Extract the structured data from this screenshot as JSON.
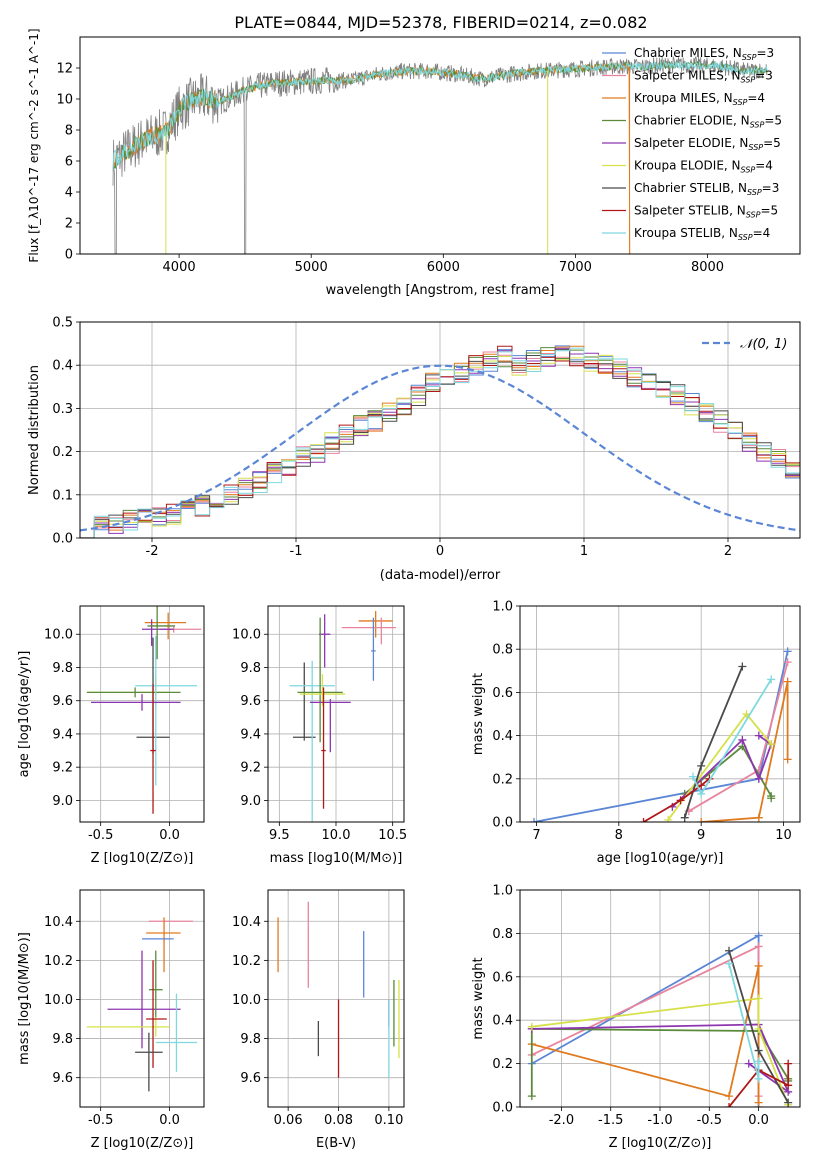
{
  "figure": {
    "title": "PLATE=0844, MJD=52378, FIBERID=0214, z=0.082"
  },
  "colors": {
    "chabrier_miles": "#5b86d6",
    "salpeter_miles": "#e8849e",
    "kroupa_miles": "#e07a1f",
    "chabrier_elodie": "#5a8a3a",
    "salpeter_elodie": "#8e36b0",
    "kroupa_elodie": "#d6e04a",
    "chabrier_stelib": "#4a4a4a",
    "salpeter_stelib": "#b01818",
    "kroupa_stelib": "#7fd8e0",
    "gaussian": "#5b86d6"
  },
  "labels": {
    "spec_ylabel": "Flux [f_λ10^-17 erg cm^-2 s^-1 A^-1]",
    "spec_xlabel": "wavelength [Angstrom, rest frame]",
    "hist_ylabel": "Normed distribution",
    "hist_xlabel": "(data-model)/error",
    "hist_legend": "𝒩(0, 1)",
    "age_ylabel": "age  [log10(age/yr)]",
    "z_xlabel": "Z [log10(Z/Z⊙)]",
    "mass_xlabel": "mass [log10(M/M⊙)]",
    "mass_ylabel": "mass [log10(M/M⊙)]",
    "weight_ylabel": "mass weight",
    "age_xlabel": "age  [log10(age/yr)]",
    "ebv_xlabel": "E(B-V)"
  },
  "legend_entries": [
    {
      "key": "chabrier_miles",
      "text": "Chabrier MILES, N",
      "sub": "SSP",
      "val": "=3"
    },
    {
      "key": "salpeter_miles",
      "text": "Salpeter MILES, N",
      "sub": "SSP",
      "val": "=3"
    },
    {
      "key": "kroupa_miles",
      "text": "Kroupa MILES, N",
      "sub": "SSP",
      "val": "=4"
    },
    {
      "key": "chabrier_elodie",
      "text": "Chabrier ELODIE, N",
      "sub": "SSP",
      "val": "=5"
    },
    {
      "key": "salpeter_elodie",
      "text": "Salpeter ELODIE, N",
      "sub": "SSP",
      "val": "=5"
    },
    {
      "key": "kroupa_elodie",
      "text": "Kroupa ELODIE, N",
      "sub": "SSP",
      "val": "=4"
    },
    {
      "key": "chabrier_stelib",
      "text": "Chabrier STELIB, N",
      "sub": "SSP",
      "val": "=3"
    },
    {
      "key": "salpeter_stelib",
      "text": "Salpeter STELIB, N",
      "sub": "SSP",
      "val": "=5"
    },
    {
      "key": "kroupa_stelib",
      "text": "Kroupa STELIB, N",
      "sub": "SSP",
      "val": "=4"
    }
  ],
  "chart_data": [
    {
      "id": "spectrum",
      "type": "line",
      "xlim": [
        3250,
        8700
      ],
      "ylim": [
        0,
        14
      ],
      "xticks": [
        4000,
        5000,
        6000,
        7000,
        8000
      ],
      "yticks": [
        0,
        2,
        4,
        6,
        8,
        10,
        12
      ],
      "continuum": {
        "x": [
          3500,
          3600,
          3700,
          3800,
          3900,
          4000,
          4100,
          4200,
          4300,
          4500,
          4700,
          4900,
          5100,
          5300,
          5500,
          5700,
          5900,
          6100,
          6300,
          6500,
          6700,
          6900,
          7100,
          7300,
          7500,
          7700,
          7900,
          8100,
          8300,
          8450
        ],
        "y": [
          6.0,
          6.6,
          7.2,
          7.6,
          7.9,
          9.3,
          9.9,
          10.1,
          9.8,
          10.6,
          11.0,
          11.1,
          11.2,
          11.2,
          11.6,
          11.8,
          11.8,
          11.6,
          11.3,
          11.6,
          11.8,
          11.9,
          12.0,
          12.1,
          12.1,
          12.2,
          12.2,
          12.1,
          11.8,
          11.9
        ]
      },
      "grid": false
    },
    {
      "id": "residual_hist",
      "type": "bar",
      "xlim": [
        -2.5,
        2.5
      ],
      "ylim": [
        0,
        0.5
      ],
      "xticks": [
        -2,
        -1,
        0,
        1,
        2
      ],
      "yticks": [
        0.0,
        0.1,
        0.2,
        0.3,
        0.4,
        0.5
      ],
      "bin_width": 0.1,
      "bin_start": -2.5,
      "base_counts": [
        0.025,
        0.03,
        0.035,
        0.04,
        0.045,
        0.05,
        0.055,
        0.065,
        0.075,
        0.085,
        0.1,
        0.115,
        0.13,
        0.15,
        0.17,
        0.19,
        0.2,
        0.22,
        0.24,
        0.26,
        0.27,
        0.29,
        0.31,
        0.33,
        0.36,
        0.37,
        0.38,
        0.4,
        0.41,
        0.42,
        0.4,
        0.41,
        0.42,
        0.43,
        0.42,
        0.41,
        0.4,
        0.39,
        0.37,
        0.36,
        0.34,
        0.33,
        0.31,
        0.29,
        0.27,
        0.25,
        0.22,
        0.2,
        0.18,
        0.16,
        0.14,
        0.12,
        0.11,
        0.09,
        0.08,
        0.07,
        0.06,
        0.05,
        0.04,
        0.035,
        0.03,
        0.025,
        0.02,
        0.02,
        0.015,
        0.01,
        0.01,
        0.01,
        0.01,
        0.01
      ],
      "gaussian": {
        "mean": 0,
        "sigma": 1,
        "name": "𝒩(0, 1)"
      },
      "grid": true
    },
    {
      "id": "age_vs_z",
      "type": "scatter",
      "xlim": [
        -0.65,
        0.25
      ],
      "ylim": [
        8.87,
        10.17
      ],
      "xticks": [
        -0.5,
        0.0
      ],
      "yticks": [
        9.0,
        9.2,
        9.4,
        9.6,
        9.8,
        10.0
      ],
      "points": [
        {
          "key": "kroupa_miles",
          "x": -0.01,
          "xerr": [
            0.17,
            0.13
          ],
          "y": 10.07,
          "yerr": [
            0.1,
            0.06
          ]
        },
        {
          "key": "salpeter_miles",
          "x": 0.03,
          "xerr": [
            0.1,
            0.2
          ],
          "y": 10.03,
          "yerr": [
            0.02,
            0.02
          ]
        },
        {
          "key": "salpeter_elodie",
          "x": -0.13,
          "xerr": [
            0.07,
            0.16
          ],
          "y": 10.03,
          "yerr": [
            0.1,
            0.06
          ]
        },
        {
          "key": "chabrier_elodie",
          "x": -0.09,
          "xerr": [
            0.07,
            0.13
          ],
          "y": 10.05,
          "yerr": [
            0.2,
            0.2
          ]
        },
        {
          "key": "chabrier_stelib",
          "x": -0.12,
          "xerr": [
            0.12,
            0.12
          ],
          "y": 9.38,
          "yerr": [
            0.1,
            0.6
          ]
        },
        {
          "key": "kroupa_elodie",
          "x": -0.1,
          "xerr": [
            0.5,
            0.1
          ],
          "y": 9.65,
          "yerr": [
            0.1,
            0.1
          ]
        },
        {
          "key": "chabrier_elodie",
          "x": -0.25,
          "xerr": [
            0.35,
            0.33
          ],
          "y": 9.65,
          "yerr": [
            0.03,
            0.03
          ]
        },
        {
          "key": "kroupa_stelib",
          "x": -0.1,
          "xerr": [
            0.15,
            0.3
          ],
          "y": 9.69,
          "yerr": [
            0.6,
            0.3
          ]
        },
        {
          "key": "salpeter_elodie",
          "x": -0.2,
          "xerr": [
            0.37,
            0.28
          ],
          "y": 9.59,
          "yerr": [
            0.05,
            0.05
          ]
        },
        {
          "key": "salpeter_stelib",
          "x": -0.12,
          "xerr": [
            0.02,
            0.02
          ],
          "y": 9.3,
          "yerr": [
            0.38,
            0.4
          ]
        }
      ]
    },
    {
      "id": "age_vs_mass",
      "type": "scatter",
      "xlim": [
        9.4,
        10.6
      ],
      "ylim": [
        8.87,
        10.17
      ],
      "xticks": [
        9.5,
        10.0,
        10.5
      ],
      "yticks": [
        9.0,
        9.2,
        9.4,
        9.6,
        9.8,
        10.0
      ],
      "points": [
        {
          "key": "kroupa_miles",
          "x": 10.35,
          "xerr": [
            0.15,
            0.15
          ],
          "y": 10.08,
          "yerr": [
            0.1,
            0.06
          ]
        },
        {
          "key": "salpeter_miles",
          "x": 10.4,
          "xerr": [
            0.35,
            0.13
          ],
          "y": 10.04,
          "yerr": [
            0.1,
            0.06
          ]
        },
        {
          "key": "salpeter_elodie",
          "x": 9.9,
          "xerr": [
            0.05,
            0.05
          ],
          "y": 10.0,
          "yerr": [
            0.2,
            0.12
          ]
        },
        {
          "key": "chabrier_miles",
          "x": 10.33,
          "xerr": [
            0.02,
            0.02
          ],
          "y": 9.9,
          "yerr": [
            0.18,
            0.2
          ]
        },
        {
          "key": "chabrier_stelib",
          "x": 9.72,
          "xerr": [
            0.1,
            0.1
          ],
          "y": 9.38,
          "yerr": [
            0.02,
            0.45
          ]
        },
        {
          "key": "kroupa_stelib",
          "x": 9.79,
          "xerr": [
            0.2,
            0.2
          ],
          "y": 9.69,
          "yerr": [
            0.84,
            0.15
          ]
        },
        {
          "key": "chabrier_elodie",
          "x": 9.86,
          "xerr": [
            0.2,
            0.2
          ],
          "y": 9.65,
          "yerr": [
            0.3,
            0.45
          ]
        },
        {
          "key": "kroupa_elodie",
          "x": 9.88,
          "xerr": [
            0.2,
            0.2
          ],
          "y": 9.64,
          "yerr": [
            0.07,
            0.12
          ]
        },
        {
          "key": "salpeter_elodie",
          "x": 9.95,
          "xerr": [
            0.18,
            0.18
          ],
          "y": 9.59,
          "yerr": [
            0.3,
            0.02
          ]
        },
        {
          "key": "salpeter_stelib",
          "x": 9.89,
          "xerr": [
            0.02,
            0.02
          ],
          "y": 9.3,
          "yerr": [
            0.35,
            0.38
          ]
        }
      ]
    },
    {
      "id": "weight_vs_age",
      "type": "line",
      "xlim": [
        6.8,
        10.2
      ],
      "ylim": [
        0,
        1.0
      ],
      "xticks": [
        7,
        8,
        9,
        10
      ],
      "yticks": [
        0.0,
        0.2,
        0.4,
        0.6,
        0.8,
        1.0
      ],
      "series": [
        {
          "key": "chabrier_miles",
          "x": [
            6.97,
            9.7,
            10.05
          ],
          "y": [
            0.0,
            0.2,
            0.79
          ]
        },
        {
          "key": "salpeter_miles",
          "x": [
            8.85,
            9.7,
            10.05
          ],
          "y": [
            0.05,
            0.24,
            0.74
          ]
        },
        {
          "key": "kroupa_miles",
          "x": [
            9.0,
            9.7,
            10.05,
            10.05
          ],
          "y": [
            0.0,
            0.02,
            0.65,
            0.29
          ]
        },
        {
          "key": "chabrier_elodie",
          "x": [
            8.8,
            9.5,
            9.85,
            9.85
          ],
          "y": [
            0.13,
            0.35,
            0.12,
            0.11
          ]
        },
        {
          "key": "salpeter_elodie",
          "x": [
            8.65,
            9.5,
            9.7,
            9.85,
            9.7
          ],
          "y": [
            0.07,
            0.38,
            0.2,
            0.36,
            0.4
          ]
        },
        {
          "key": "kroupa_elodie",
          "x": [
            8.6,
            9.55,
            9.85
          ],
          "y": [
            0.01,
            0.5,
            0.36
          ]
        },
        {
          "key": "chabrier_stelib",
          "x": [
            8.8,
            9.0,
            9.5
          ],
          "y": [
            0.02,
            0.26,
            0.72
          ]
        },
        {
          "key": "salpeter_stelib",
          "x": [
            8.3,
            8.75,
            9.0,
            9.1
          ],
          "y": [
            0.0,
            0.1,
            0.17,
            0.2
          ]
        },
        {
          "key": "kroupa_stelib",
          "x": [
            8.9,
            9.0,
            9.85
          ],
          "y": [
            0.21,
            0.13,
            0.66
          ]
        }
      ]
    },
    {
      "id": "mass_vs_z",
      "type": "scatter",
      "xlim": [
        -0.65,
        0.25
      ],
      "ylim": [
        9.45,
        10.56
      ],
      "xticks": [
        -0.5,
        0.0
      ],
      "yticks": [
        9.6,
        9.8,
        10.0,
        10.2,
        10.4
      ],
      "points": [
        {
          "key": "salpeter_miles",
          "x": -0.03,
          "xerr": [
            0.12,
            0.2
          ],
          "y": 10.4,
          "yerr": [
            0.0,
            0.0
          ]
        },
        {
          "key": "kroupa_miles",
          "x": -0.04,
          "xerr": [
            0.13,
            0.12
          ],
          "y": 10.34,
          "yerr": [
            0.2,
            0.08
          ]
        },
        {
          "key": "chabrier_miles",
          "x": -0.07,
          "xerr": [
            0.13,
            0.1
          ],
          "y": 10.31,
          "yerr": [
            0.0,
            0.0
          ]
        },
        {
          "key": "salpeter_elodie",
          "x": -0.2,
          "xerr": [
            0.25,
            0.28
          ],
          "y": 9.95,
          "yerr": [
            0.2,
            0.3
          ]
        },
        {
          "key": "chabrier_elodie",
          "x": -0.1,
          "xerr": [
            0.05,
            0.05
          ],
          "y": 10.05,
          "yerr": [
            0.15,
            0.2
          ]
        },
        {
          "key": "kroupa_elodie",
          "x": -0.1,
          "xerr": [
            0.5,
            0.1
          ],
          "y": 9.86,
          "yerr": [
            0.05,
            0.05
          ]
        },
        {
          "key": "salpeter_stelib",
          "x": -0.12,
          "xerr": [
            0.05,
            0.1
          ],
          "y": 9.9,
          "yerr": [
            0.25,
            0.3
          ]
        },
        {
          "key": "chabrier_stelib",
          "x": -0.15,
          "xerr": [
            0.1,
            0.1
          ],
          "y": 9.73,
          "yerr": [
            0.2,
            0.1
          ]
        },
        {
          "key": "kroupa_stelib",
          "x": 0.05,
          "xerr": [
            0.15,
            0.15
          ],
          "y": 9.78,
          "yerr": [
            0.15,
            0.25
          ]
        }
      ]
    },
    {
      "id": "mass_vs_ebv",
      "type": "scatter",
      "xlim": [
        0.052,
        0.106
      ],
      "ylim": [
        9.45,
        10.56
      ],
      "xticks": [
        0.06,
        0.08,
        0.1
      ],
      "yticks": [
        9.6,
        9.8,
        10.0,
        10.2,
        10.4
      ],
      "points": [
        {
          "key": "kroupa_miles",
          "x": 0.056,
          "y": 10.28,
          "yerr": [
            0.14,
            0.14
          ]
        },
        {
          "key": "salpeter_miles",
          "x": 0.068,
          "y": 10.28,
          "yerr": [
            0.22,
            0.22
          ]
        },
        {
          "key": "chabrier_stelib",
          "x": 0.072,
          "y": 9.8,
          "yerr": [
            0.09,
            0.09
          ]
        },
        {
          "key": "salpeter_stelib",
          "x": 0.08,
          "y": 9.8,
          "yerr": [
            0.2,
            0.2
          ]
        },
        {
          "key": "chabrier_miles",
          "x": 0.09,
          "y": 10.18,
          "yerr": [
            0.17,
            0.17
          ]
        },
        {
          "key": "salpeter_elodie",
          "x": 0.1,
          "y": 9.93,
          "yerr": [
            0.07,
            0.07
          ]
        },
        {
          "key": "kroupa_stelib",
          "x": 0.1,
          "y": 9.8,
          "yerr": [
            0.2,
            0.2
          ]
        },
        {
          "key": "kroupa_elodie",
          "x": 0.104,
          "y": 9.9,
          "yerr": [
            0.2,
            0.2
          ]
        },
        {
          "key": "chabrier_elodie",
          "x": 0.102,
          "y": 9.93,
          "yerr": [
            0.17,
            0.17
          ]
        }
      ]
    },
    {
      "id": "weight_vs_z",
      "type": "line",
      "xlim": [
        -2.42,
        0.42
      ],
      "ylim": [
        0,
        1.0
      ],
      "xticks": [
        -2.0,
        -1.5,
        -1.0,
        -0.5,
        0.0
      ],
      "yticks": [
        0.0,
        0.2,
        0.4,
        0.6,
        0.8,
        1.0
      ],
      "series": [
        {
          "key": "chabrier_miles",
          "x": [
            -2.3,
            0.0,
            0.0
          ],
          "y": [
            0.2,
            0.79,
            0.0
          ]
        },
        {
          "key": "salpeter_miles",
          "x": [
            -2.3,
            0.0,
            0.0
          ],
          "y": [
            0.24,
            0.74,
            0.05
          ]
        },
        {
          "key": "kroupa_miles",
          "x": [
            -2.3,
            -0.3,
            0.0,
            0.0
          ],
          "y": [
            0.29,
            0.05,
            0.65,
            0.02
          ]
        },
        {
          "key": "chabrier_elodie",
          "x": [
            -2.3,
            -2.3,
            0.0,
            0.3,
            0.3
          ],
          "y": [
            0.05,
            0.36,
            0.35,
            0.13,
            0.12
          ]
        },
        {
          "key": "salpeter_elodie",
          "x": [
            -2.3,
            0.0,
            0.3,
            -0.1
          ],
          "y": [
            0.36,
            0.38,
            0.07,
            0.2
          ]
        },
        {
          "key": "kroupa_elodie",
          "x": [
            -2.3,
            0.0,
            0.0,
            0.3
          ],
          "y": [
            0.37,
            0.5,
            0.36,
            0.01
          ]
        },
        {
          "key": "chabrier_stelib",
          "x": [
            -0.3,
            0.0,
            0.3
          ],
          "y": [
            0.72,
            0.26,
            0.02
          ]
        },
        {
          "key": "salpeter_stelib",
          "x": [
            -0.3,
            0.0,
            0.3,
            0.3
          ],
          "y": [
            0.0,
            0.17,
            0.1,
            0.2
          ]
        },
        {
          "key": "kroupa_stelib",
          "x": [
            -0.3,
            0.0,
            0.0
          ],
          "y": [
            0.66,
            0.13,
            0.21
          ]
        }
      ]
    }
  ]
}
